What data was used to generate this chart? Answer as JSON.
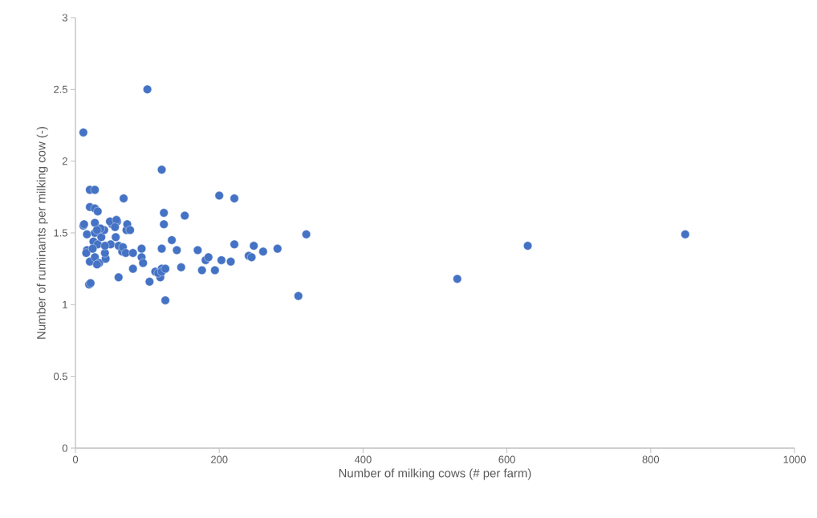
{
  "chart_data": {
    "type": "scatter",
    "xlabel": "Number of milking cows (# per farm)",
    "ylabel": "Number of ruminants per milking cow (-)",
    "xlim": [
      0,
      1000
    ],
    "ylim": [
      0,
      3
    ],
    "xticks": [
      0,
      200,
      400,
      600,
      800,
      1000
    ],
    "yticks": [
      0,
      0.5,
      1,
      1.5,
      2,
      2.5,
      3
    ],
    "marker": "circle",
    "series": [
      {
        "color": "#4472c4",
        "x": [
          11,
          100,
          120,
          20,
          27,
          20,
          27,
          31,
          67,
          200,
          221,
          123,
          152,
          11,
          16,
          16,
          19,
          21,
          20,
          25,
          27,
          27,
          31,
          33,
          36,
          40,
          42,
          49,
          51,
          58,
          56,
          60,
          60,
          65,
          71,
          80,
          92,
          92,
          94,
          103,
          111,
          118,
          120,
          120,
          125,
          123,
          134,
          141,
          147,
          170,
          176,
          181,
          185,
          194,
          203,
          216,
          221,
          241,
          245,
          248,
          261,
          281,
          310,
          321,
          531,
          629,
          848,
          12,
          27,
          48,
          57,
          72,
          76,
          35,
          55,
          66,
          41,
          30,
          15,
          24,
          30,
          41,
          70,
          80,
          115,
          120,
          125
        ],
        "values": [
          2.2,
          2.5,
          1.94,
          1.8,
          1.8,
          1.68,
          1.67,
          1.65,
          1.74,
          1.76,
          1.74,
          1.64,
          1.62,
          1.55,
          1.49,
          1.38,
          1.14,
          1.15,
          1.3,
          1.44,
          1.5,
          1.33,
          1.42,
          1.29,
          1.47,
          1.52,
          1.32,
          1.42,
          1.56,
          1.58,
          1.47,
          1.41,
          1.19,
          1.37,
          1.52,
          1.25,
          1.39,
          1.33,
          1.29,
          1.16,
          1.23,
          1.19,
          1.39,
          1.25,
          1.03,
          1.56,
          1.45,
          1.38,
          1.26,
          1.38,
          1.24,
          1.31,
          1.33,
          1.24,
          1.31,
          1.3,
          1.42,
          1.34,
          1.33,
          1.41,
          1.37,
          1.39,
          1.06,
          1.49,
          1.18,
          1.41,
          1.49,
          1.56,
          1.57,
          1.58,
          1.59,
          1.56,
          1.52,
          1.53,
          1.54,
          1.4,
          1.36,
          1.52,
          1.36,
          1.39,
          1.28,
          1.41,
          1.36,
          1.36,
          1.22,
          1.23,
          1.25
        ]
      }
    ]
  }
}
